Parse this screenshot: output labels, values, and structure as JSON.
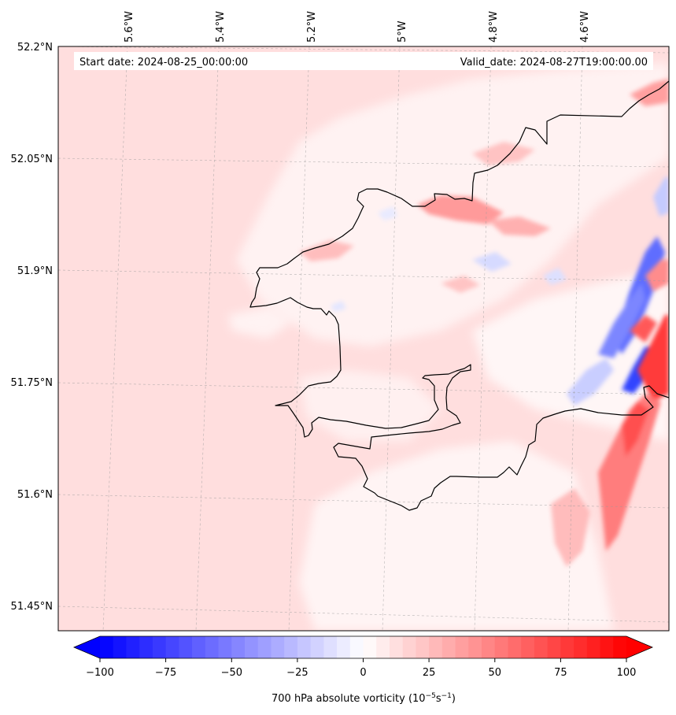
{
  "header": {
    "start_date": "Start date: 2024-08-25_00:00:00",
    "valid_date": "Valid_date: 2024-08-27T19:00:00.00"
  },
  "map": {
    "lon_ticks": [
      "5.6°W",
      "5.4°W",
      "5.2°W",
      "5°W",
      "4.8°W",
      "4.6°W"
    ],
    "lat_ticks": [
      "52.2°N",
      "52.05°N",
      "51.9°N",
      "51.75°N",
      "51.6°N",
      "51.45°N"
    ],
    "background_color": "#ffdede",
    "coast_color": "#000000"
  },
  "colorbar": {
    "ticks": [
      "−100",
      "−75",
      "−50",
      "−25",
      "0",
      "25",
      "50",
      "75",
      "100"
    ],
    "min": -100,
    "max": 100,
    "low_color": "#0000ff",
    "mid_color": "#ffffff",
    "high_color": "#ff0000",
    "label": "700 hPa absolute vorticity (10",
    "label_exp1": "−5",
    "label_mid": "s",
    "label_exp2": "−1",
    "label_end": ")"
  }
}
